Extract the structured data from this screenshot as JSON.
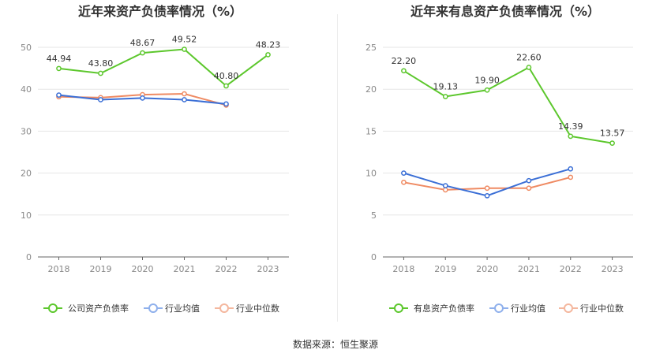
{
  "source_text": "数据来源：恒生聚源",
  "chart_data": [
    {
      "type": "line",
      "title": "近年来资产负债率情况（%）",
      "categories": [
        "2018",
        "2019",
        "2020",
        "2021",
        "2022",
        "2023"
      ],
      "ylim": [
        0,
        50
      ],
      "yticks": [
        0,
        10,
        20,
        30,
        40,
        50
      ],
      "legend_position": "bottom",
      "series": [
        {
          "name": "公司资产负债率",
          "color": "#5cc72c",
          "values": [
            44.94,
            43.8,
            48.67,
            49.52,
            40.8,
            48.23
          ],
          "labels": [
            "44.94",
            "43.80",
            "48.67",
            "49.52",
            "40.80",
            "48.23"
          ]
        },
        {
          "name": "行业均值",
          "color": "#3b6fd6",
          "legend_color": "#8fb0ec",
          "values": [
            38.6,
            37.5,
            37.9,
            37.5,
            36.5,
            null
          ]
        },
        {
          "name": "行业中位数",
          "color": "#ef8a62",
          "legend_color": "#f4b79e",
          "values": [
            38.2,
            38.0,
            38.7,
            38.9,
            36.2,
            null
          ]
        }
      ]
    },
    {
      "type": "line",
      "title": "近年来有息资产负债率情况（%）",
      "categories": [
        "2018",
        "2019",
        "2020",
        "2021",
        "2022",
        "2023"
      ],
      "ylim": [
        0,
        25
      ],
      "yticks": [
        0,
        5,
        10,
        15,
        20,
        25
      ],
      "legend_position": "bottom",
      "series": [
        {
          "name": "有息资产负债率",
          "color": "#5cc72c",
          "values": [
            22.2,
            19.13,
            19.9,
            22.6,
            14.39,
            13.57
          ],
          "labels": [
            "22.20",
            "19.13",
            "19.90",
            "22.60",
            "14.39",
            "13.57"
          ]
        },
        {
          "name": "行业均值",
          "color": "#3b6fd6",
          "legend_color": "#8fb0ec",
          "values": [
            10.0,
            8.5,
            7.3,
            9.1,
            10.5,
            null
          ]
        },
        {
          "name": "行业中位数",
          "color": "#ef8a62",
          "legend_color": "#f4b79e",
          "values": [
            8.9,
            8.0,
            8.2,
            8.2,
            9.5,
            null
          ]
        }
      ]
    }
  ]
}
